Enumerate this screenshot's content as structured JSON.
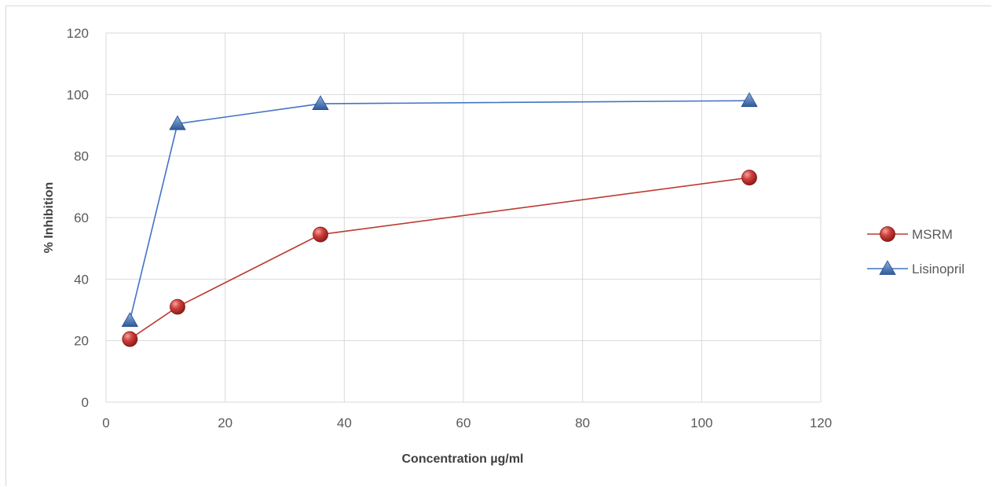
{
  "chart_data": {
    "type": "scatter",
    "title": "",
    "xlabel": "Concentration µg/ml",
    "ylabel": "% Inhibition",
    "xlim": [
      0,
      120
    ],
    "ylim": [
      0,
      120
    ],
    "x_ticks": [
      0,
      20,
      40,
      60,
      80,
      100,
      120
    ],
    "y_ticks": [
      0,
      20,
      40,
      60,
      80,
      100,
      120
    ],
    "grid": true,
    "legend_position": "right",
    "series": [
      {
        "name": "MSRM",
        "marker": "circle",
        "color": "#c0392b",
        "x": [
          4,
          12,
          36,
          108
        ],
        "y": [
          20.5,
          31,
          54.5,
          73
        ]
      },
      {
        "name": "Lisinopril",
        "marker": "triangle",
        "color": "#4472c4",
        "x": [
          4,
          12,
          36,
          108
        ],
        "y": [
          26.5,
          90.5,
          97,
          98
        ]
      }
    ]
  }
}
